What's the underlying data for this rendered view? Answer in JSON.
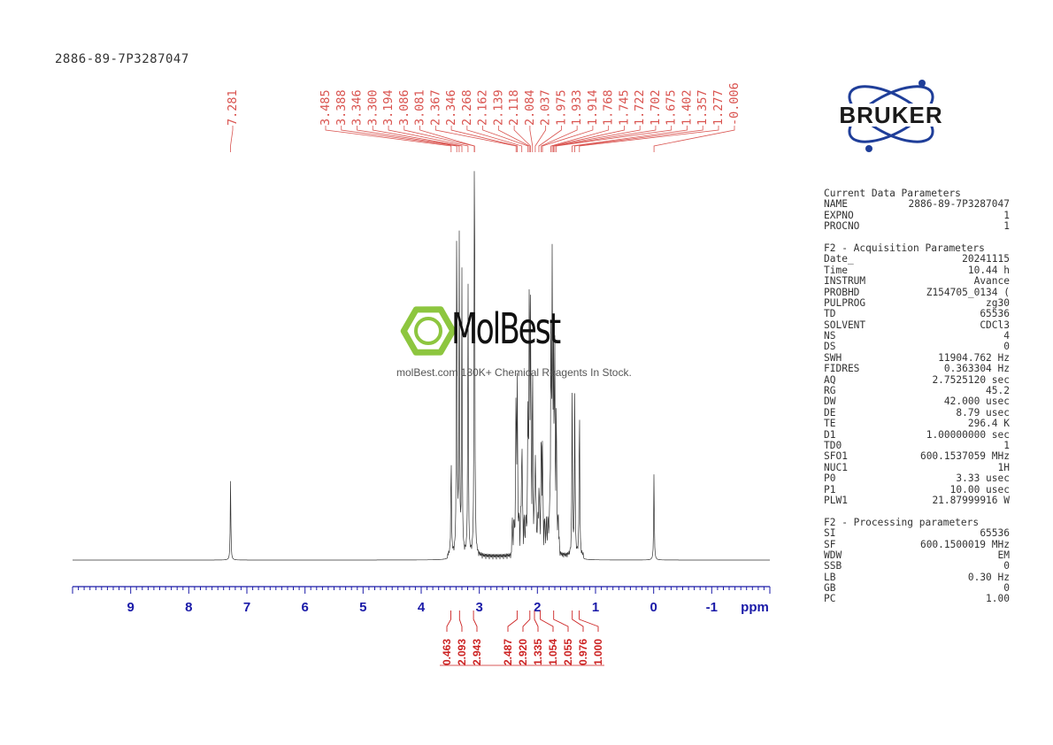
{
  "sample_id": "2886-89-7P3287047",
  "watermark": {
    "name": "MolBest",
    "tagline": "molBest.com,180K+ Chemical Reagents In Stock."
  },
  "logo": {
    "text": "BRUKER",
    "color": "#1f3e99"
  },
  "colors": {
    "accent": "#d9534f",
    "axis": "#1a1aa8",
    "spectrum": "#333333"
  },
  "params": [
    {
      "title": "Current Data Parameters",
      "rows": [
        {
          "name": "NAME",
          "value": "2886-89-7P3287047"
        },
        {
          "name": "EXPNO",
          "value": "1"
        },
        {
          "name": "PROCNO",
          "value": "1"
        }
      ]
    },
    {
      "title": "F2 - Acquisition Parameters",
      "rows": [
        {
          "name": "Date_",
          "value": "20241115"
        },
        {
          "name": "Time",
          "value": "10.44 h"
        },
        {
          "name": "INSTRUM",
          "value": "Avance"
        },
        {
          "name": "PROBHD",
          "value": "Z154705_0134 ("
        },
        {
          "name": "PULPROG",
          "value": "zg30"
        },
        {
          "name": "TD",
          "value": "65536"
        },
        {
          "name": "SOLVENT",
          "value": "CDCl3"
        },
        {
          "name": "NS",
          "value": "4"
        },
        {
          "name": "DS",
          "value": "0"
        },
        {
          "name": "SWH",
          "value": "11904.762 Hz"
        },
        {
          "name": "FIDRES",
          "value": "0.363304 Hz"
        },
        {
          "name": "AQ",
          "value": "2.7525120 sec"
        },
        {
          "name": "RG",
          "value": "45.2"
        },
        {
          "name": "DW",
          "value": "42.000 usec"
        },
        {
          "name": "DE",
          "value": "8.79 usec"
        },
        {
          "name": "TE",
          "value": "296.4 K"
        },
        {
          "name": "D1",
          "value": "1.00000000 sec"
        },
        {
          "name": "TD0",
          "value": "1"
        },
        {
          "name": "SFO1",
          "value": "600.1537059 MHz"
        },
        {
          "name": "NUC1",
          "value": "1H"
        },
        {
          "name": "P0",
          "value": "3.33 usec"
        },
        {
          "name": "P1",
          "value": "10.00 usec"
        },
        {
          "name": "PLW1",
          "value": "21.87999916 W"
        }
      ]
    },
    {
      "title": "F2 - Processing parameters",
      "rows": [
        {
          "name": "SI",
          "value": "65536"
        },
        {
          "name": "SF",
          "value": "600.1500019 MHz"
        },
        {
          "name": "WDW",
          "value": "EM"
        },
        {
          "name": "SSB",
          "value": "0"
        },
        {
          "name": "LB",
          "value": "0.30 Hz"
        },
        {
          "name": "GB",
          "value": "0"
        },
        {
          "name": "PC",
          "value": "1.00"
        }
      ]
    }
  ],
  "chart_data": {
    "type": "line",
    "title": "",
    "xlabel": "ppm",
    "ylabel": "",
    "xlim": [
      10.0,
      -2.0
    ],
    "x_ticks": [
      "9",
      "8",
      "7",
      "6",
      "5",
      "4",
      "3",
      "2",
      "1",
      "0",
      "-1"
    ],
    "x_tick_values": [
      9,
      8,
      7,
      6,
      5,
      4,
      3,
      2,
      1,
      0,
      -1
    ],
    "peak_labels": [
      "7.281",
      "3.485",
      "3.388",
      "3.346",
      "3.300",
      "3.194",
      "3.086",
      "3.081",
      "2.367",
      "2.346",
      "2.268",
      "2.162",
      "2.139",
      "2.118",
      "2.084",
      "2.037",
      "1.975",
      "1.933",
      "1.914",
      "1.768",
      "1.745",
      "1.722",
      "1.702",
      "1.675",
      "1.402",
      "1.357",
      "1.277",
      "-0.006"
    ],
    "peak_positions_ppm": [
      7.281,
      3.485,
      3.388,
      3.346,
      3.3,
      3.194,
      3.086,
      3.081,
      2.367,
      2.346,
      2.268,
      2.162,
      2.139,
      2.118,
      2.084,
      2.037,
      1.975,
      1.933,
      1.914,
      1.768,
      1.745,
      1.722,
      1.702,
      1.675,
      1.402,
      1.357,
      1.277,
      -0.006
    ],
    "peak_heights": [
      0.21,
      0.28,
      0.99,
      0.83,
      0.74,
      0.74,
      0.68,
      0.62,
      0.41,
      0.38,
      0.3,
      0.34,
      0.69,
      0.58,
      0.43,
      0.25,
      0.13,
      0.26,
      0.22,
      0.53,
      0.76,
      0.48,
      0.44,
      0.32,
      0.45,
      0.42,
      0.43,
      0.23
    ],
    "integrals": [
      {
        "label": "0.463",
        "ppm": 3.49
      },
      {
        "label": "2.093",
        "ppm": 3.34
      },
      {
        "label": "2.943",
        "ppm": 3.1
      },
      {
        "label": "2.487",
        "ppm": 2.35
      },
      {
        "label": "2.920",
        "ppm": 2.13
      },
      {
        "label": "1.335",
        "ppm": 2.05
      },
      {
        "label": "1.054",
        "ppm": 1.95
      },
      {
        "label": "2.055",
        "ppm": 1.72
      },
      {
        "label": "0.976",
        "ppm": 1.4
      },
      {
        "label": "1.000",
        "ppm": 1.28
      }
    ]
  }
}
